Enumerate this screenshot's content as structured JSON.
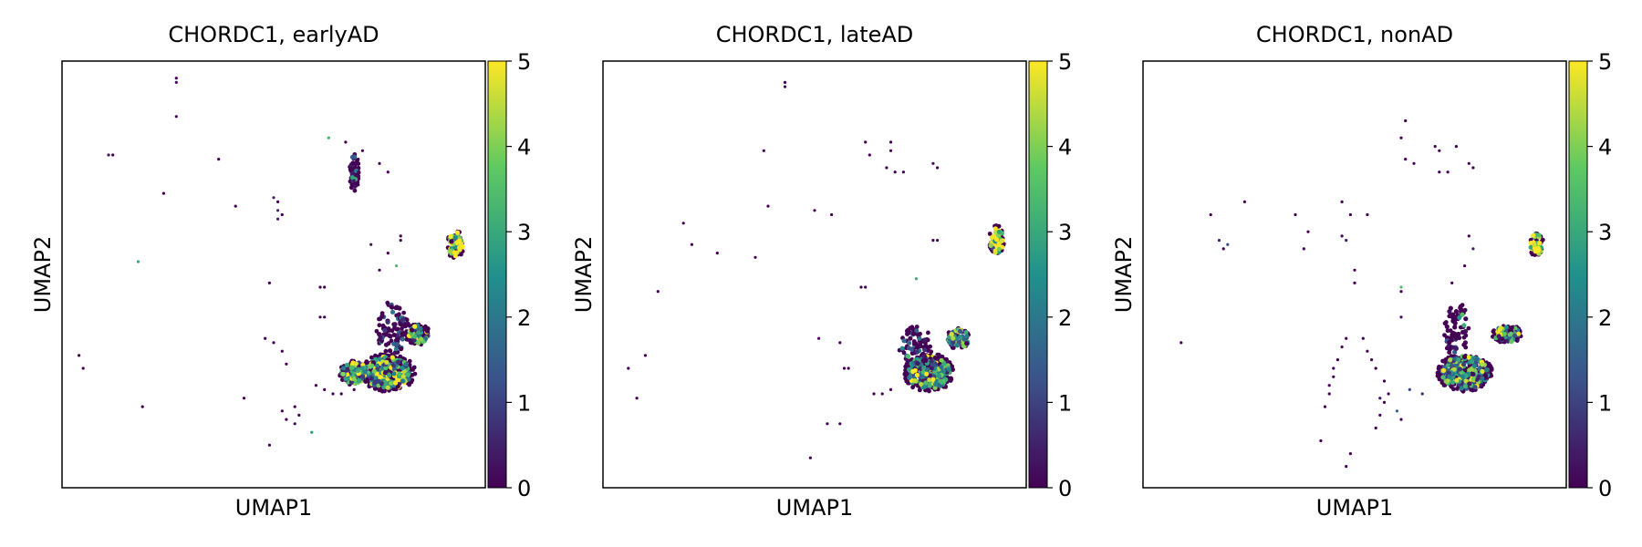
{
  "figure": {
    "colormap": "viridis",
    "colormap_stops": [
      "#440154",
      "#3b528b",
      "#21918c",
      "#5ec962",
      "#fde725"
    ]
  },
  "chart_data": [
    {
      "type": "scatter",
      "title": "CHORDC1, earlyAD",
      "xlabel": "UMAP1",
      "ylabel": "UMAP2",
      "colorbar": {
        "min": 0,
        "max": 5,
        "ticks": [
          "0",
          "1",
          "2",
          "3",
          "4",
          "5"
        ]
      },
      "grid": false,
      "points": [
        [
          0.27,
          0.96,
          0
        ],
        [
          0.27,
          0.95,
          0.2
        ],
        [
          0.27,
          0.87,
          0
        ],
        [
          0.11,
          0.78,
          0.3
        ],
        [
          0.12,
          0.78,
          0
        ],
        [
          0.37,
          0.77,
          0
        ],
        [
          0.24,
          0.69,
          0
        ],
        [
          0.41,
          0.66,
          0
        ],
        [
          0.5,
          0.68,
          0.5
        ],
        [
          0.51,
          0.67,
          0
        ],
        [
          0.51,
          0.65,
          0.6
        ],
        [
          0.52,
          0.64,
          0
        ],
        [
          0.51,
          0.63,
          0.4
        ],
        [
          0.63,
          0.82,
          3.2
        ],
        [
          0.67,
          0.81,
          0
        ],
        [
          0.71,
          0.79,
          0
        ],
        [
          0.7,
          0.77,
          0
        ],
        [
          0.69,
          0.75,
          0
        ],
        [
          0.7,
          0.74,
          0
        ],
        [
          0.69,
          0.72,
          0.4
        ],
        [
          0.7,
          0.71,
          0
        ],
        [
          0.75,
          0.76,
          0
        ],
        [
          0.77,
          0.74,
          0
        ],
        [
          0.18,
          0.53,
          2.9
        ],
        [
          0.49,
          0.48,
          0
        ],
        [
          0.61,
          0.47,
          0
        ],
        [
          0.62,
          0.47,
          0
        ],
        [
          0.61,
          0.4,
          0
        ],
        [
          0.62,
          0.4,
          0
        ],
        [
          0.8,
          0.58,
          0
        ],
        [
          0.8,
          0.59,
          0
        ],
        [
          0.77,
          0.55,
          0
        ],
        [
          0.75,
          0.51,
          0
        ],
        [
          0.79,
          0.52,
          3.4
        ],
        [
          0.73,
          0.57,
          0.3
        ],
        [
          0.04,
          0.31,
          0
        ],
        [
          0.05,
          0.28,
          0
        ],
        [
          0.19,
          0.19,
          0
        ],
        [
          0.43,
          0.21,
          0
        ],
        [
          0.48,
          0.35,
          0
        ],
        [
          0.5,
          0.34,
          0
        ],
        [
          0.52,
          0.32,
          0
        ],
        [
          0.53,
          0.29,
          0
        ],
        [
          0.6,
          0.24,
          0
        ],
        [
          0.62,
          0.23,
          0
        ],
        [
          0.64,
          0.22,
          0
        ],
        [
          0.66,
          0.22,
          0
        ],
        [
          0.69,
          0.23,
          0
        ],
        [
          0.52,
          0.18,
          0
        ],
        [
          0.53,
          0.16,
          0
        ],
        [
          0.55,
          0.19,
          0
        ],
        [
          0.55,
          0.15,
          0
        ],
        [
          0.56,
          0.17,
          0
        ],
        [
          0.49,
          0.1,
          0
        ],
        [
          0.59,
          0.13,
          2.7
        ]
      ],
      "clusters": [
        {
          "center": [
            0.93,
            0.57
          ],
          "radius": [
            0.02,
            0.035
          ],
          "count": 40,
          "level": 4.5
        },
        {
          "center": [
            0.84,
            0.36
          ],
          "radius": [
            0.03,
            0.025
          ],
          "count": 60,
          "level": 2.5
        },
        {
          "center": [
            0.77,
            0.27
          ],
          "radius": [
            0.065,
            0.045
          ],
          "count": 200,
          "level": 2.8
        },
        {
          "center": [
            0.69,
            0.27
          ],
          "radius": [
            0.035,
            0.03
          ],
          "count": 70,
          "level": 2.6
        },
        {
          "center": [
            0.78,
            0.37
          ],
          "radius": [
            0.04,
            0.07
          ],
          "count": 50,
          "level": 0.2
        },
        {
          "center": [
            0.69,
            0.74
          ],
          "radius": [
            0.012,
            0.045
          ],
          "count": 30,
          "level": 0.1
        }
      ]
    },
    {
      "type": "scatter",
      "title": "CHORDC1, lateAD",
      "xlabel": "UMAP1",
      "ylabel": "UMAP2",
      "colorbar": {
        "min": 0,
        "max": 5,
        "ticks": [
          "0",
          "1",
          "2",
          "3",
          "4",
          "5"
        ]
      },
      "grid": false,
      "points": [
        [
          0.43,
          0.95,
          0
        ],
        [
          0.43,
          0.94,
          0.2
        ],
        [
          0.38,
          0.79,
          0
        ],
        [
          0.62,
          0.81,
          0
        ],
        [
          0.68,
          0.81,
          0
        ],
        [
          0.63,
          0.78,
          0
        ],
        [
          0.68,
          0.79,
          0
        ],
        [
          0.67,
          0.75,
          0
        ],
        [
          0.69,
          0.74,
          0
        ],
        [
          0.71,
          0.74,
          0
        ],
        [
          0.78,
          0.76,
          0
        ],
        [
          0.79,
          0.75,
          0
        ],
        [
          0.39,
          0.66,
          0
        ],
        [
          0.5,
          0.65,
          0
        ],
        [
          0.54,
          0.64,
          0
        ],
        [
          0.19,
          0.62,
          0
        ],
        [
          0.21,
          0.57,
          0
        ],
        [
          0.27,
          0.55,
          0
        ],
        [
          0.36,
          0.54,
          0
        ],
        [
          0.78,
          0.58,
          0
        ],
        [
          0.79,
          0.58,
          0.2
        ],
        [
          0.61,
          0.47,
          0
        ],
        [
          0.62,
          0.47,
          0
        ],
        [
          0.74,
          0.49,
          3.1
        ],
        [
          0.13,
          0.46,
          0
        ],
        [
          0.1,
          0.31,
          0
        ],
        [
          0.06,
          0.28,
          0
        ],
        [
          0.08,
          0.21,
          0
        ],
        [
          0.51,
          0.35,
          0
        ],
        [
          0.56,
          0.34,
          0
        ],
        [
          0.57,
          0.28,
          0
        ],
        [
          0.58,
          0.28,
          0
        ],
        [
          0.64,
          0.22,
          0
        ],
        [
          0.66,
          0.22,
          0
        ],
        [
          0.68,
          0.23,
          0
        ],
        [
          0.53,
          0.15,
          0
        ],
        [
          0.56,
          0.15,
          0
        ],
        [
          0.49,
          0.07,
          0
        ]
      ],
      "clusters": [
        {
          "center": [
            0.93,
            0.58
          ],
          "radius": [
            0.018,
            0.035
          ],
          "count": 35,
          "level": 4.4
        },
        {
          "center": [
            0.84,
            0.35
          ],
          "radius": [
            0.03,
            0.025
          ],
          "count": 50,
          "level": 2.6
        },
        {
          "center": [
            0.77,
            0.27
          ],
          "radius": [
            0.06,
            0.045
          ],
          "count": 190,
          "level": 2.6
        },
        {
          "center": [
            0.74,
            0.33
          ],
          "radius": [
            0.04,
            0.05
          ],
          "count": 40,
          "level": 0.3
        }
      ]
    },
    {
      "type": "scatter",
      "title": "CHORDC1, nonAD",
      "xlabel": "UMAP1",
      "ylabel": "UMAP2",
      "colorbar": {
        "min": 0,
        "max": 5,
        "ticks": [
          "0",
          "1",
          "2",
          "3",
          "4",
          "5"
        ]
      },
      "grid": false,
      "points": [
        [
          0.62,
          0.86,
          0
        ],
        [
          0.61,
          0.82,
          0
        ],
        [
          0.62,
          0.77,
          0
        ],
        [
          0.64,
          0.76,
          0
        ],
        [
          0.69,
          0.8,
          0
        ],
        [
          0.7,
          0.79,
          0
        ],
        [
          0.7,
          0.74,
          0
        ],
        [
          0.74,
          0.8,
          0
        ],
        [
          0.77,
          0.76,
          0
        ],
        [
          0.78,
          0.75,
          0
        ],
        [
          0.72,
          0.74,
          0
        ],
        [
          0.24,
          0.67,
          0
        ],
        [
          0.16,
          0.64,
          0
        ],
        [
          0.18,
          0.58,
          0.5
        ],
        [
          0.19,
          0.56,
          0
        ],
        [
          0.2,
          0.57,
          1.2
        ],
        [
          0.36,
          0.64,
          0
        ],
        [
          0.39,
          0.6,
          0
        ],
        [
          0.38,
          0.56,
          0
        ],
        [
          0.47,
          0.67,
          0
        ],
        [
          0.49,
          0.64,
          0
        ],
        [
          0.53,
          0.64,
          0
        ],
        [
          0.47,
          0.59,
          0
        ],
        [
          0.48,
          0.58,
          0.4
        ],
        [
          0.5,
          0.51,
          0
        ],
        [
          0.5,
          0.48,
          0
        ],
        [
          0.61,
          0.47,
          3.5
        ],
        [
          0.61,
          0.46,
          0
        ],
        [
          0.77,
          0.59,
          0
        ],
        [
          0.78,
          0.56,
          0.4
        ],
        [
          0.76,
          0.52,
          0
        ],
        [
          0.73,
          0.48,
          0
        ],
        [
          0.09,
          0.34,
          0
        ],
        [
          0.61,
          0.4,
          0
        ],
        [
          0.48,
          0.35,
          0
        ],
        [
          0.47,
          0.33,
          0
        ],
        [
          0.46,
          0.3,
          0
        ],
        [
          0.45,
          0.28,
          0
        ],
        [
          0.45,
          0.26,
          0
        ],
        [
          0.44,
          0.24,
          0
        ],
        [
          0.44,
          0.22,
          0
        ],
        [
          0.43,
          0.19,
          0
        ],
        [
          0.52,
          0.35,
          0
        ],
        [
          0.53,
          0.32,
          0
        ],
        [
          0.54,
          0.3,
          0
        ],
        [
          0.55,
          0.28,
          0
        ],
        [
          0.57,
          0.25,
          0
        ],
        [
          0.58,
          0.22,
          0
        ],
        [
          0.57,
          0.2,
          0
        ],
        [
          0.56,
          0.17,
          0
        ],
        [
          0.55,
          0.14,
          0
        ],
        [
          0.42,
          0.11,
          0
        ],
        [
          0.49,
          0.08,
          0
        ],
        [
          0.48,
          0.05,
          0
        ],
        [
          0.6,
          0.18,
          1.5
        ],
        [
          0.61,
          0.16,
          0
        ],
        [
          0.56,
          0.21,
          0.3
        ],
        [
          0.63,
          0.23,
          1.1
        ],
        [
          0.66,
          0.22,
          0.6
        ]
      ],
      "clusters": [
        {
          "center": [
            0.93,
            0.57
          ],
          "radius": [
            0.017,
            0.03
          ],
          "count": 30,
          "level": 4.2
        },
        {
          "center": [
            0.86,
            0.36
          ],
          "radius": [
            0.035,
            0.022
          ],
          "count": 55,
          "level": 2.4
        },
        {
          "center": [
            0.76,
            0.27
          ],
          "radius": [
            0.065,
            0.045
          ],
          "count": 200,
          "level": 2.2
        },
        {
          "center": [
            0.74,
            0.37
          ],
          "radius": [
            0.03,
            0.07
          ],
          "count": 40,
          "level": 0.2
        }
      ]
    }
  ]
}
